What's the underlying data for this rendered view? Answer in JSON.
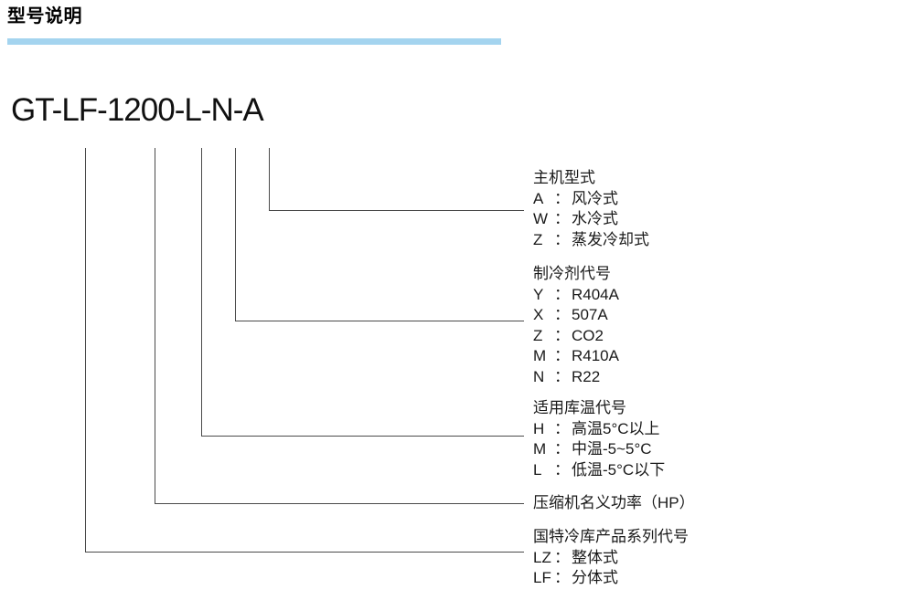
{
  "header": {
    "title": "型号说明"
  },
  "model": {
    "code": "GT-LF-1200-L-N-A"
  },
  "colors": {
    "accent_bar": "#a4d4ef",
    "connector_line": "#4a4a4a",
    "text": "#1a1a1a"
  },
  "legend": {
    "separator": "："
  },
  "legend_blocks": [
    {
      "id": "main-unit-type",
      "title": "主机型式",
      "items": [
        {
          "code": "A",
          "desc": "风冷式"
        },
        {
          "code": "W",
          "desc": "水冷式"
        },
        {
          "code": "Z",
          "desc": "蒸发冷却式"
        }
      ]
    },
    {
      "id": "refrigerant-code",
      "title": "制冷剂代号",
      "items": [
        {
          "code": "Y",
          "desc": "R404A"
        },
        {
          "code": "X",
          "desc": "507A"
        },
        {
          "code": "Z",
          "desc": "CO2"
        },
        {
          "code": "M",
          "desc": "R410A"
        },
        {
          "code": "N",
          "desc": "R22"
        }
      ]
    },
    {
      "id": "storage-temp-code",
      "title": "适用库温代号",
      "items": [
        {
          "code": "H",
          "desc": "高温5°C以上"
        },
        {
          "code": "M",
          "desc": "中温-5~5°C"
        },
        {
          "code": "L",
          "desc": "低温-5°C以下"
        }
      ]
    },
    {
      "id": "compressor-power",
      "title": "压缩机名义功率（HP）",
      "items": []
    },
    {
      "id": "product-series-code",
      "title": "国特冷库产品系列代号",
      "items": [
        {
          "code": "LZ",
          "desc": "整体式"
        },
        {
          "code": "LF",
          "desc": "分体式"
        }
      ]
    }
  ],
  "connectors": [
    {
      "segment": "LF",
      "block": "product-series-code"
    },
    {
      "segment": "1200",
      "block": "compressor-power"
    },
    {
      "segment": "L",
      "block": "storage-temp-code"
    },
    {
      "segment": "N",
      "block": "refrigerant-code"
    },
    {
      "segment": "A",
      "block": "main-unit-type"
    }
  ]
}
